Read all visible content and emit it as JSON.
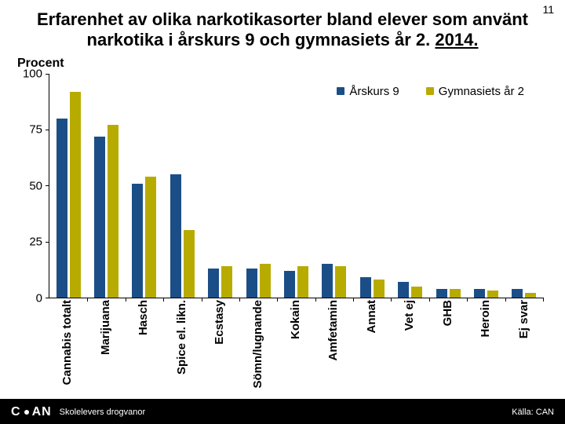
{
  "page_number": "11",
  "title_line1": "Erfarenhet av olika narkotikasorter bland elever som använt",
  "title_line2_a": "narkotika i årskurs 9 och gymnasiets år 2. ",
  "title_line2_b": "2014.",
  "y_axis_label": "Procent",
  "footer_subtitle": "Skolelevers drogvanor",
  "footer_source": "Källa: CAN",
  "logo_text_1": "C",
  "logo_text_2": "AN",
  "chart": {
    "type": "bar",
    "ylim": [
      0,
      100
    ],
    "yticks": [
      0,
      25,
      50,
      75,
      100
    ],
    "series": [
      {
        "name": "Årskurs 9",
        "color": "#1b4e87"
      },
      {
        "name": "Gymnasiets år 2",
        "color": "#b8ab00"
      }
    ],
    "categories": [
      "Cannabis totalt",
      "Marijuana",
      "Hasch",
      "Spice el. likn.",
      "Ecstasy",
      "Sömn/lugnande",
      "Kokain",
      "Amfetamin",
      "Annat",
      "Vet ej",
      "GHB",
      "Heroin",
      "Ej svar"
    ],
    "values_s1": [
      80,
      72,
      51,
      55,
      13,
      13,
      12,
      15,
      9,
      7,
      4,
      4,
      4
    ],
    "values_s2": [
      92,
      77,
      54,
      30,
      14,
      15,
      14,
      14,
      8,
      5,
      4,
      3,
      2
    ],
    "axis_fontsize": 15,
    "label_fontsize": 15,
    "title_fontsize": 22,
    "background": "#ffffff",
    "footer_bg": "#000000",
    "footer_fg": "#ffffff"
  }
}
